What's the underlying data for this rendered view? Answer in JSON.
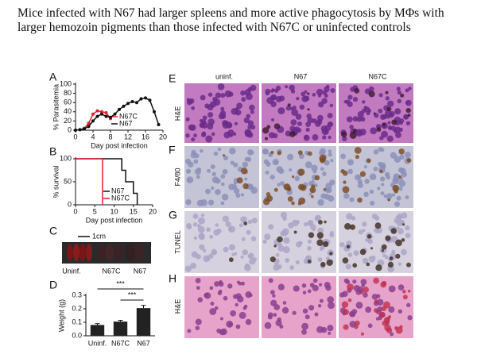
{
  "title": "Mice infected with N67 had larger spleens and more active phagocytosis by MΦs with larger hemozoin pigments than those infected with N67C or uninfected controls",
  "panel_labels": [
    "A",
    "B",
    "C",
    "D",
    "E",
    "F",
    "G",
    "H"
  ],
  "panel_c": {
    "scale": "1cm",
    "labels": [
      "Uninf.",
      "N67C",
      "N67"
    ]
  },
  "micrographs": {
    "columns": [
      "uninf.",
      "N67",
      "N67C"
    ],
    "rows": [
      "H&E",
      "F4/80",
      "TUNEL",
      "H&E"
    ]
  },
  "chart_data": [
    {
      "type": "line",
      "x_label": "Day post infection",
      "y_label": "% Parasitemia",
      "xlim": [
        0,
        20
      ],
      "xticks": [
        0,
        4,
        8,
        12,
        16,
        20
      ],
      "ylim": [
        0,
        100
      ],
      "yticks": [
        0,
        20,
        40,
        60,
        80,
        100
      ],
      "series": [
        {
          "name": "N67C",
          "color": "#e0202a",
          "x": [
            0,
            1,
            2,
            3,
            4,
            5,
            6,
            7,
            8
          ],
          "values": [
            0,
            1,
            4,
            15,
            35,
            42,
            40,
            38,
            25
          ]
        },
        {
          "name": "N67",
          "color": "#111111",
          "x": [
            0,
            1,
            2,
            3,
            4,
            5,
            6,
            7,
            8,
            9,
            10,
            11,
            12,
            13,
            14,
            15,
            16,
            17,
            18,
            19
          ],
          "values": [
            0,
            1,
            3,
            8,
            20,
            30,
            35,
            30,
            28,
            35,
            45,
            52,
            58,
            62,
            60,
            68,
            70,
            65,
            40,
            12
          ]
        }
      ]
    },
    {
      "type": "line",
      "step": true,
      "x_label": "Day post infection",
      "y_label": "% survival",
      "xlim": [
        0,
        20
      ],
      "xticks": [
        0,
        5,
        10,
        15,
        20
      ],
      "ylim": [
        0,
        100
      ],
      "yticks": [
        0,
        50,
        100
      ],
      "series": [
        {
          "name": "N67",
          "color": "#111111",
          "x": [
            0,
            12,
            13,
            15,
            16
          ],
          "values": [
            100,
            75,
            50,
            25,
            0
          ]
        },
        {
          "name": "N67C",
          "color": "#e0202a",
          "x": [
            0,
            7
          ],
          "values": [
            100,
            0
          ]
        }
      ]
    },
    {
      "type": "bar",
      "y_label": "Weight (g)",
      "categories": [
        "Uninf.",
        "N67C",
        "N67"
      ],
      "values": [
        0.08,
        0.105,
        0.205
      ],
      "errors": [
        0.01,
        0.01,
        0.02
      ],
      "color": "#222222",
      "ylim": [
        0,
        0.3
      ],
      "yticks": [
        {
          "value": 0,
          "label": "0.0"
        },
        0.1,
        0.2,
        0.3
      ],
      "annotations": [
        "***",
        "***"
      ]
    }
  ]
}
